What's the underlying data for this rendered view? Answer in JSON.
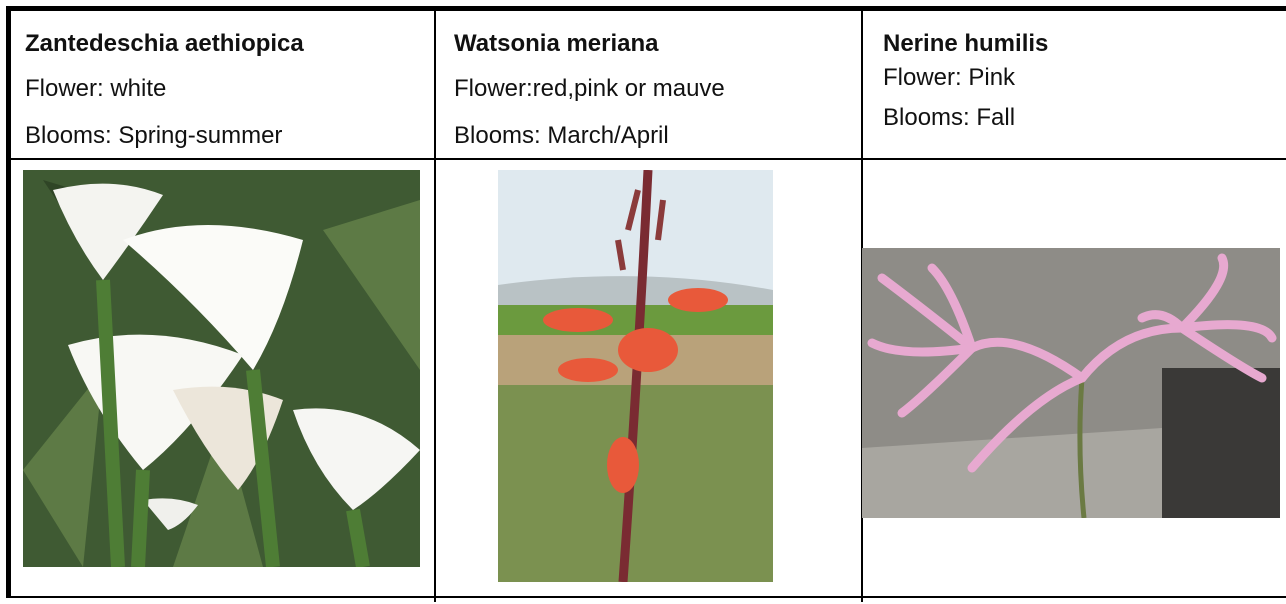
{
  "columns": [
    {
      "name": "Zantedeschia aethiopica",
      "flower": "Flower: white",
      "blooms": "Blooms: Spring-summer"
    },
    {
      "name": "Watsonia meriana",
      "flower": "Flower:red,pink or mauve",
      "blooms": "Blooms: March/April"
    },
    {
      "name": "Nerine humilis",
      "flower": "Flower: Pink",
      "blooms": "Blooms: Fall"
    }
  ]
}
